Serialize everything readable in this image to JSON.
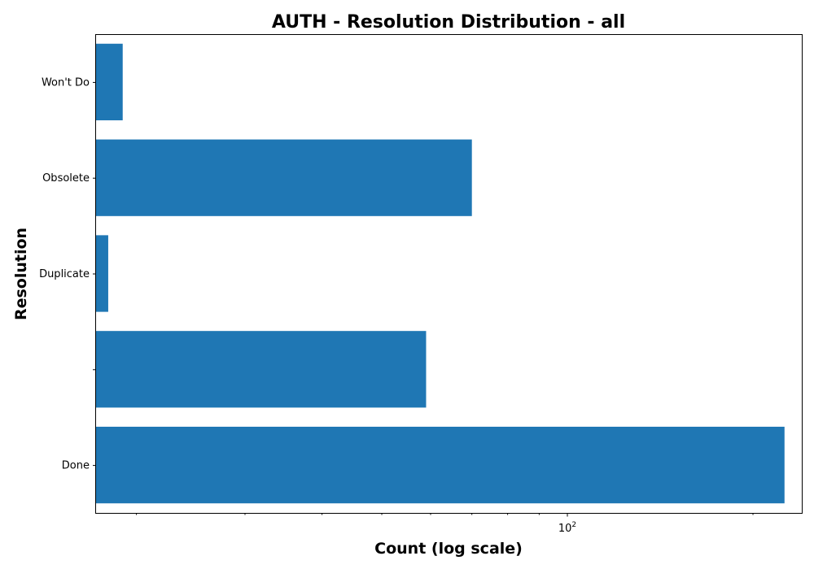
{
  "chart_data": {
    "type": "bar",
    "orientation": "horizontal",
    "title": "AUTH - Resolution Distribution - all",
    "xlabel": "Count (log scale)",
    "ylabel": "Resolution",
    "x_scale": "log",
    "xlim": [
      17.2,
      240
    ],
    "categories": [
      "Done",
      "",
      "Duplicate",
      "Obsolete",
      "Won't Do"
    ],
    "values": [
      225,
      59,
      18,
      70,
      19
    ],
    "x_major_ticks": [
      {
        "value": 100,
        "base": "10",
        "exponent": "2"
      }
    ],
    "x_minor_ticks": [
      20,
      30,
      40,
      50,
      60,
      70,
      80,
      90,
      200
    ],
    "bar_color": "#1f77b4",
    "grid": false,
    "legend": "none"
  }
}
